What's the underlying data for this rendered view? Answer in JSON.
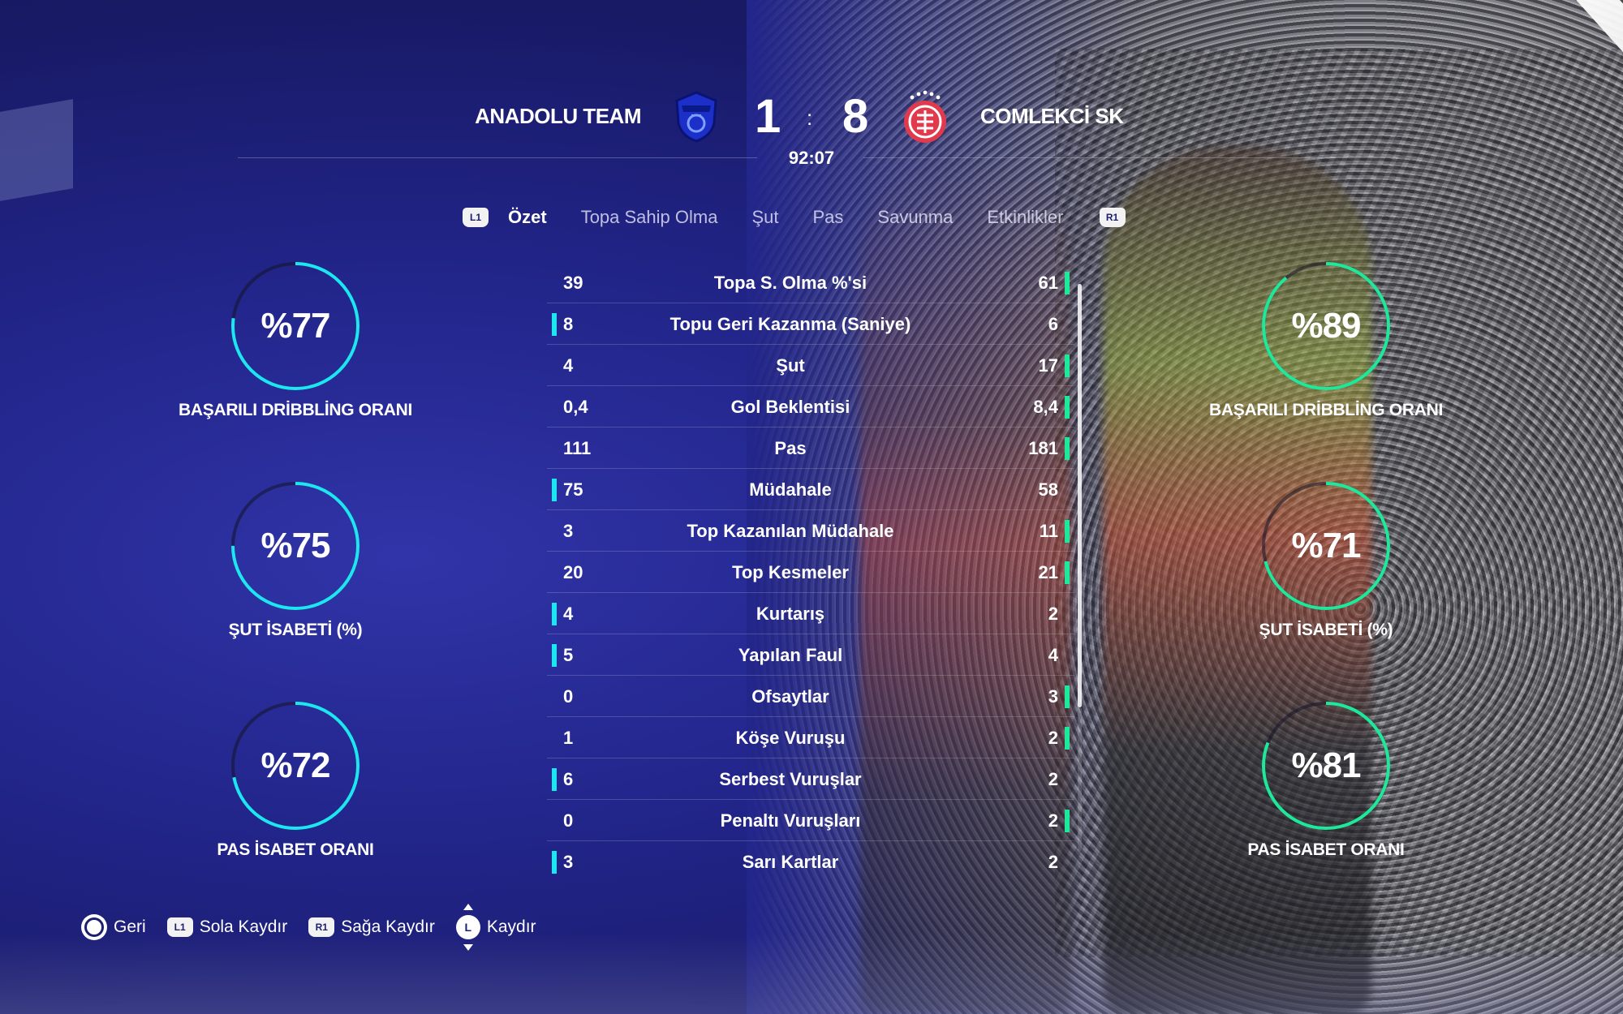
{
  "header": {
    "home_team": "ANADOLU TEAM",
    "away_team": "COMLEKCİ SK",
    "home_score": "1",
    "score_separator": ":",
    "away_score": "8",
    "match_clock": "92:07",
    "home_crest_icon": "blue-shield-crest-icon",
    "away_crest_icon": "red-star-circle-crest-icon"
  },
  "tabs": {
    "prev_button": "L1",
    "next_button": "R1",
    "items": [
      {
        "label": "Özet",
        "active": true
      },
      {
        "label": "Topa Sahip Olma",
        "active": false
      },
      {
        "label": "Şut",
        "active": false
      },
      {
        "label": "Pas",
        "active": false
      },
      {
        "label": "Savunma",
        "active": false
      },
      {
        "label": "Etkinlikler",
        "active": false
      }
    ]
  },
  "home_circles": [
    {
      "value": "%77",
      "label": "BAŞARILI DRİBBLİNG ORANI",
      "fraction": 0.77
    },
    {
      "value": "%75",
      "label": "ŞUT İSABETİ (%)",
      "fraction": 0.75
    },
    {
      "value": "%72",
      "label": "PAS İSABET ORANI",
      "fraction": 0.72
    }
  ],
  "away_circles": [
    {
      "value": "%89",
      "label": "BAŞARILI DRİBBLİNG ORANI",
      "fraction": 0.89
    },
    {
      "value": "%71",
      "label": "ŞUT İSABETİ (%)",
      "fraction": 0.71
    },
    {
      "value": "%81",
      "label": "PAS İSABET ORANI",
      "fraction": 0.81
    }
  ],
  "stats": [
    {
      "home": "39",
      "label": "Topa S. Olma %'si",
      "away": "61",
      "leader": "away"
    },
    {
      "home": "8",
      "label": "Topu Geri Kazanma (Saniye)",
      "away": "6",
      "leader": "home"
    },
    {
      "home": "4",
      "label": "Şut",
      "away": "17",
      "leader": "away"
    },
    {
      "home": "0,4",
      "label": "Gol Beklentisi",
      "away": "8,4",
      "leader": "away"
    },
    {
      "home": "111",
      "label": "Pas",
      "away": "181",
      "leader": "away"
    },
    {
      "home": "75",
      "label": "Müdahale",
      "away": "58",
      "leader": "home"
    },
    {
      "home": "3",
      "label": "Top Kazanılan Müdahale",
      "away": "11",
      "leader": "away"
    },
    {
      "home": "20",
      "label": "Top Kesmeler",
      "away": "21",
      "leader": "away"
    },
    {
      "home": "4",
      "label": "Kurtarış",
      "away": "2",
      "leader": "home"
    },
    {
      "home": "5",
      "label": "Yapılan Faul",
      "away": "4",
      "leader": "home"
    },
    {
      "home": "0",
      "label": "Ofsaytlar",
      "away": "3",
      "leader": "away"
    },
    {
      "home": "1",
      "label": "Köşe Vuruşu",
      "away": "2",
      "leader": "away"
    },
    {
      "home": "6",
      "label": "Serbest Vuruşlar",
      "away": "2",
      "leader": "home"
    },
    {
      "home": "0",
      "label": "Penaltı Vuruşları",
      "away": "2",
      "leader": "away"
    },
    {
      "home": "3",
      "label": "Sarı Kartlar",
      "away": "2",
      "leader": "home"
    }
  ],
  "footer": {
    "back_label": "Geri",
    "scroll_left_button": "L1",
    "scroll_left_label": "Sola Kaydır",
    "scroll_right_button": "R1",
    "scroll_right_label": "Sağa Kaydır",
    "scroll_button": "L",
    "scroll_label": "Kaydır"
  },
  "colors": {
    "home_accent": "#1ee6f0",
    "away_accent": "#1ee89a"
  }
}
